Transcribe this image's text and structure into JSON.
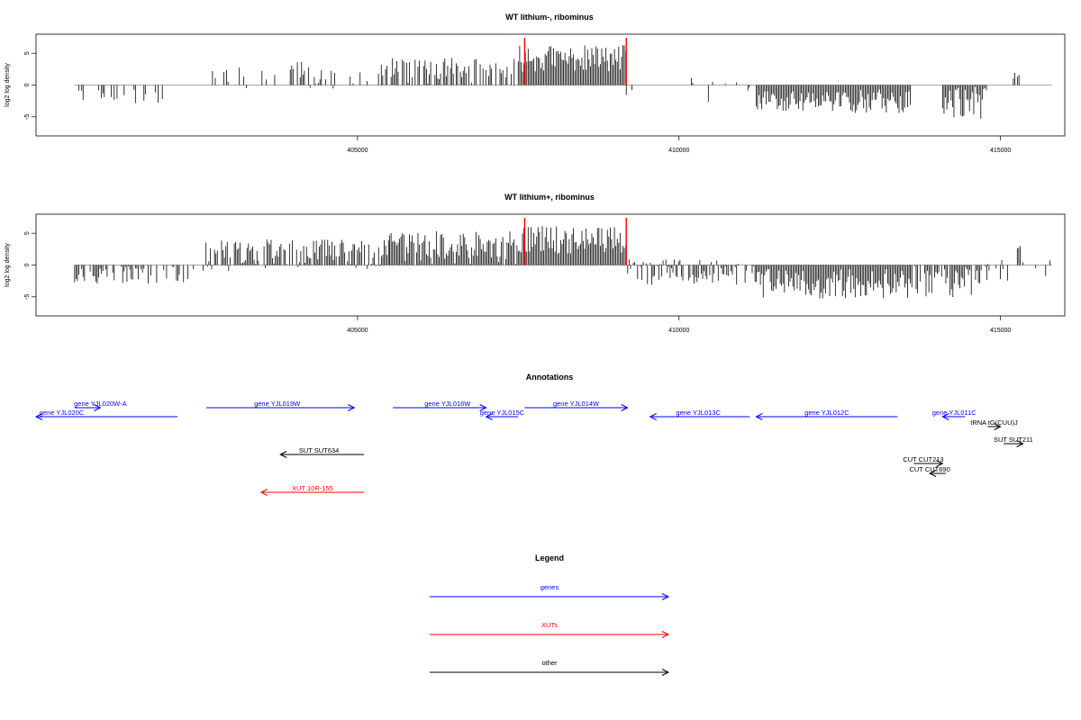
{
  "chart_data": [
    {
      "type": "bar",
      "title": "WT lithium-, ribominus",
      "ylabel": "log2 log density",
      "xlabel": "",
      "xlim": [
        400000,
        416000
      ],
      "ylim": [
        -8,
        8
      ],
      "x_ticks": [
        405000,
        410000,
        415000
      ],
      "x_tick_labels": [
        "405000",
        "410000",
        "415000"
      ],
      "y_ticks": [
        -5,
        0,
        5
      ],
      "y_tick_labels": [
        "-5",
        "0",
        "5"
      ],
      "highlight_lines_x": [
        407600,
        409180
      ],
      "highlight_color": "#ff0000",
      "bar_color": "#000000",
      "regions": [
        {
          "from": 400600,
          "to": 402100,
          "mean": -1.5,
          "spread": 0.9,
          "density": 0.2
        },
        {
          "from": 402700,
          "to": 404600,
          "mean": 1.6,
          "spread": 1.3,
          "density": 0.35
        },
        {
          "from": 404600,
          "to": 405500,
          "mean": 1.3,
          "spread": 1.2,
          "density": 0.3
        },
        {
          "from": 405500,
          "to": 407500,
          "mean": 2.2,
          "spread": 1.3,
          "density": 0.7
        },
        {
          "from": 407500,
          "to": 409180,
          "mean": 4.2,
          "spread": 1.3,
          "density": 1.0
        },
        {
          "from": 409180,
          "to": 411200,
          "mean": -0.8,
          "spread": 1.2,
          "density": 0.15
        },
        {
          "from": 411200,
          "to": 413600,
          "mean": -2.6,
          "spread": 1.2,
          "density": 1.0
        },
        {
          "from": 414100,
          "to": 414800,
          "mean": -2.8,
          "spread": 1.6,
          "density": 1.0
        },
        {
          "from": 415200,
          "to": 415300,
          "mean": 1.5,
          "spread": 0.3,
          "density": 0.5
        }
      ]
    },
    {
      "type": "bar",
      "title": "WT lithium+, ribominus",
      "ylabel": "log2 log density",
      "xlabel": "",
      "xlim": [
        400000,
        416000
      ],
      "ylim": [
        -8,
        8
      ],
      "x_ticks": [
        405000,
        410000,
        415000
      ],
      "x_tick_labels": [
        "405000",
        "410000",
        "415000"
      ],
      "y_ticks": [
        -5,
        0,
        5
      ],
      "y_tick_labels": [
        "-5",
        "0",
        "5"
      ],
      "highlight_lines_x": [
        407600,
        409180
      ],
      "highlight_color": "#ff0000",
      "bar_color": "#000000",
      "regions": [
        {
          "from": 400600,
          "to": 402500,
          "mean": -1.5,
          "spread": 0.9,
          "density": 0.55
        },
        {
          "from": 402600,
          "to": 405500,
          "mean": 1.5,
          "spread": 1.6,
          "density": 0.9
        },
        {
          "from": 405500,
          "to": 407500,
          "mean": 2.6,
          "spread": 1.7,
          "density": 1.0
        },
        {
          "from": 407500,
          "to": 409180,
          "mean": 4.0,
          "spread": 1.4,
          "density": 1.0
        },
        {
          "from": 409180,
          "to": 411200,
          "mean": -1.2,
          "spread": 1.3,
          "density": 0.8
        },
        {
          "from": 411200,
          "to": 413600,
          "mean": -3.0,
          "spread": 1.5,
          "density": 1.0
        },
        {
          "from": 413600,
          "to": 414800,
          "mean": -2.5,
          "spread": 1.6,
          "density": 0.8
        },
        {
          "from": 414800,
          "to": 415800,
          "mean": 0.4,
          "spread": 1.8,
          "density": 0.4
        }
      ]
    }
  ],
  "annotations": {
    "title": "Annotations",
    "items": [
      {
        "label": "gene YJL020W-A",
        "color": "#0000ff",
        "dir": "right",
        "x1": 400600,
        "x2": 401000,
        "row": "g0",
        "label_x": 401000
      },
      {
        "label": "gene YJL020C",
        "color": "#0000ff",
        "dir": "left",
        "x1": 400000,
        "x2": 402200,
        "row": "g1",
        "label_x": 400400
      },
      {
        "label": "gene YJL019W",
        "color": "#0000ff",
        "dir": "right",
        "x1": 402650,
        "x2": 404950,
        "row": "g0",
        "label_x": 403750
      },
      {
        "label": "gene YJL016W",
        "color": "#0000ff",
        "dir": "right",
        "x1": 405550,
        "x2": 407000,
        "row": "g0",
        "label_x": 406400
      },
      {
        "label": "gene YJL015C",
        "color": "#0000ff",
        "dir": "left",
        "x1": 407000,
        "x2": 407500,
        "row": "g1",
        "label_x": 407250
      },
      {
        "label": "gene YJL014W",
        "color": "#0000ff",
        "dir": "right",
        "x1": 407600,
        "x2": 409200,
        "row": "g0",
        "label_x": 408400
      },
      {
        "label": "gene YJL013C",
        "color": "#0000ff",
        "dir": "left",
        "x1": 409550,
        "x2": 411100,
        "row": "g1",
        "label_x": 410300
      },
      {
        "label": "gene YJL012C",
        "color": "#0000ff",
        "dir": "left",
        "x1": 411200,
        "x2": 413400,
        "row": "g1",
        "label_x": 412300
      },
      {
        "label": "gene YJL011C",
        "color": "#0000ff",
        "dir": "left",
        "x1": 414100,
        "x2": 414450,
        "row": "g1",
        "label_x": 414280
      },
      {
        "label": "tRNA tG(CUU)J",
        "color": "#000000",
        "dir": "right",
        "x1": 414800,
        "x2": 415000,
        "row": "o0",
        "label_x": 414900
      },
      {
        "label": "SUT SUT211",
        "color": "#000000",
        "dir": "right",
        "x1": 415050,
        "x2": 415350,
        "row": "o1",
        "label_x": 415200
      },
      {
        "label": "SUT SUT634",
        "color": "#000000",
        "dir": "left",
        "x1": 403800,
        "x2": 405100,
        "row": "o2",
        "label_x": 404400
      },
      {
        "label": "CUT CUT213",
        "color": "#000000",
        "dir": "right",
        "x1": 413650,
        "x2": 414100,
        "row": "o3",
        "label_x": 413800
      },
      {
        "label": "CUT CUT690",
        "color": "#000000",
        "dir": "left",
        "x1": 413900,
        "x2": 414150,
        "row": "o4",
        "label_x": 413900
      },
      {
        "label": "XUT 10R-155",
        "color": "#ff0000",
        "dir": "left",
        "x1": 403500,
        "x2": 405100,
        "row": "x0",
        "label_x": 404300
      }
    ]
  },
  "legend": {
    "title": "Legend",
    "items": [
      {
        "label": "genes",
        "color": "#0000ff"
      },
      {
        "label": "XUTs",
        "color": "#ff0000"
      },
      {
        "label": "other",
        "color": "#000000"
      }
    ]
  }
}
